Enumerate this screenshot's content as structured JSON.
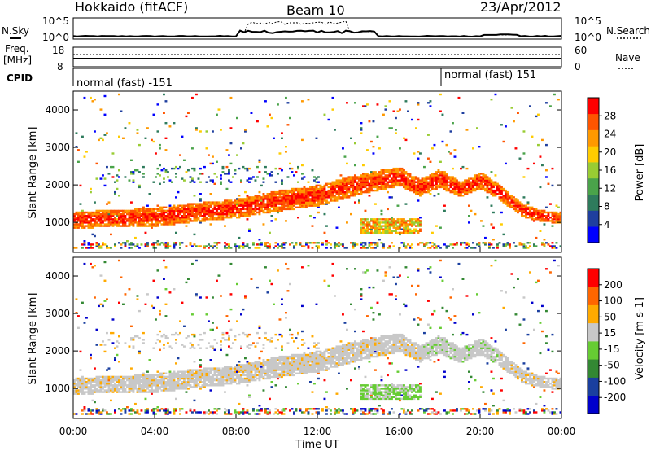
{
  "header": {
    "title": "Hokkaido (fitACF)",
    "beam": "Beam 10",
    "date": "23/Apr/2012"
  },
  "top_panel": {
    "nsky_label": "N.Sky",
    "nsearch_label": "N.Search",
    "noise_ticks": [
      "10^5",
      "10^0"
    ],
    "freq_label_1": "Freq.",
    "freq_label_2": "[MHz]",
    "freq_ticks": [
      "18",
      "8"
    ],
    "nave_ticks": [
      "60",
      "0"
    ],
    "nave_label": "Nave",
    "cpid_label": "CPID",
    "cpid_segment_1": "normal (fast) -151",
    "cpid_segment_2": "normal (fast) 151"
  },
  "colors": {
    "background": "#ffffff",
    "power_scale": [
      "#0000ff",
      "#1f3f9f",
      "#2e7b5c",
      "#4aa34a",
      "#99cc33",
      "#ffcc00",
      "#ff9900",
      "#ff5500",
      "#ff0000"
    ],
    "velocity_scale": [
      "#ff0000",
      "#ff6600",
      "#ffaa00",
      "#c8c8c8",
      "#66cc33",
      "#338833",
      "#1a3f9f",
      "#0000cc"
    ],
    "ground_scatter": "#bebebe"
  },
  "chart_data": [
    {
      "type": "heatmap",
      "name": "power",
      "ylabel": "Slant Range [km]",
      "colorbar_label": "Power [dB]",
      "colorbar_ticks": [
        "28",
        "24",
        "20",
        "16",
        "12",
        "8",
        "4"
      ],
      "ylim": [
        200,
        4500
      ],
      "y_ticks": [
        "1000",
        "2000",
        "3000",
        "4000"
      ],
      "x_ticks": [
        "00:00",
        "04:00",
        "08:00",
        "12:00",
        "16:00",
        "20:00",
        "00:00"
      ],
      "main_echo_band": {
        "time_h": [
          0,
          2,
          4,
          6,
          8,
          10,
          12,
          14,
          16,
          17,
          18,
          19,
          20,
          21,
          22,
          23,
          24
        ],
        "center_km": [
          1050,
          1080,
          1120,
          1250,
          1350,
          1550,
          1700,
          2000,
          2200,
          1900,
          2150,
          1850,
          2100,
          1750,
          1300,
          1150,
          1100
        ],
        "width_km": [
          450,
          450,
          500,
          500,
          500,
          550,
          550,
          550,
          500,
          450,
          500,
          400,
          450,
          400,
          350,
          300,
          300
        ]
      }
    },
    {
      "type": "heatmap",
      "name": "velocity",
      "xlabel": "Time UT",
      "ylabel": "Slant Range [km]",
      "colorbar_label": "Velocity [m s-1]",
      "colorbar_ticks": [
        "200",
        "100",
        "50",
        "15",
        "-15",
        "-50",
        "-100",
        "-200"
      ],
      "ylim": [
        200,
        4500
      ],
      "y_ticks": [
        "1000",
        "2000",
        "3000",
        "4000"
      ],
      "x_ticks": [
        "00:00",
        "04:00",
        "08:00",
        "12:00",
        "16:00",
        "20:00",
        "00:00"
      ]
    }
  ]
}
